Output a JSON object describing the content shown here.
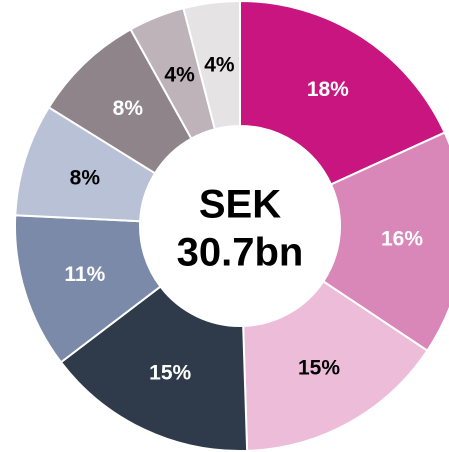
{
  "chart_data": {
    "type": "donut",
    "center_text": [
      "SEK",
      "30.7bn"
    ],
    "categories": [
      null,
      null,
      null,
      null,
      null,
      null,
      null,
      null,
      null
    ],
    "values": [
      18,
      16,
      15,
      15,
      11,
      8,
      8,
      4,
      4
    ],
    "value_labels": [
      "18%",
      "16%",
      "15%",
      "15%",
      "11%",
      "8%",
      "8%",
      "4%",
      "4%"
    ],
    "colors": [
      "#c8157f",
      "#d986b8",
      "#ecbcd9",
      "#2f3b4a",
      "#7b8aa8",
      "#b9c1d6",
      "#8f8489",
      "#bdb3b8",
      "#e6e3e5"
    ]
  }
}
